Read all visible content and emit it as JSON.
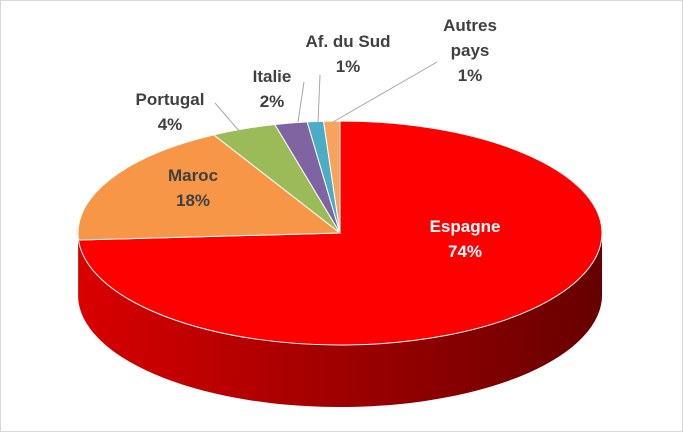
{
  "chart_data": {
    "type": "pie",
    "categories": [
      "Espagne",
      "Maroc",
      "Portugal",
      "Italie",
      "Af. du Sud",
      "Autres pays"
    ],
    "values": [
      74,
      18,
      4,
      2,
      1,
      1
    ],
    "value_labels": [
      "74%",
      "18%",
      "4%",
      "2%",
      "1%",
      "1%"
    ],
    "colors": [
      "#ff0000",
      "#f79646",
      "#9bbb59",
      "#8064a2",
      "#4bacc6",
      "#f7a35c"
    ]
  }
}
